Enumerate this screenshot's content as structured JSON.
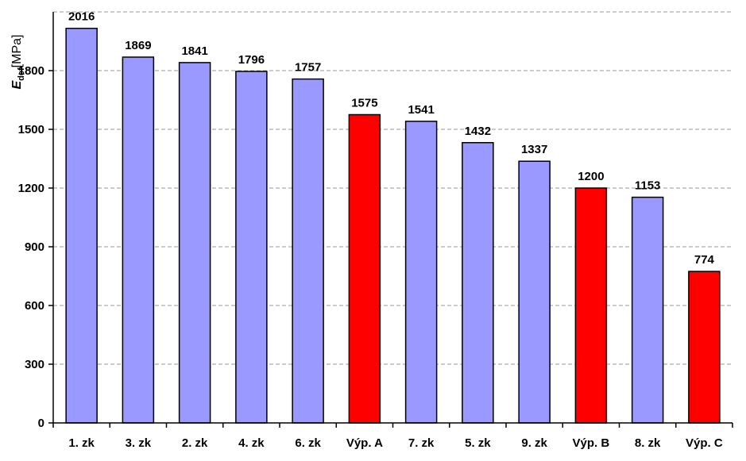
{
  "chart_data": {
    "type": "bar",
    "categories": [
      "1. zk",
      "3. zk",
      "2. zk",
      "4. zk",
      "6. zk",
      "Výp. A",
      "7. zk",
      "5. zk",
      "9. zk",
      "Výp. B",
      "8. zk",
      "Výp. C"
    ],
    "values": [
      2016,
      1869,
      1841,
      1796,
      1757,
      1575,
      1541,
      1432,
      1337,
      1200,
      1153,
      774
    ],
    "value_labels": [
      "2016",
      "1869",
      "1841",
      "1796",
      "1757",
      "1575",
      "1541",
      "1432",
      "1337",
      "1200",
      "1153",
      "774"
    ],
    "bar_colors": [
      "#9999ff",
      "#9999ff",
      "#9999ff",
      "#9999ff",
      "#9999ff",
      "#ff0000",
      "#9999ff",
      "#9999ff",
      "#9999ff",
      "#ff0000",
      "#9999ff",
      "#ff0000"
    ],
    "ylabel": {
      "symbol": "E",
      "subscript": "def",
      "unit": "[MPa]"
    },
    "ylim": [
      0,
      2100
    ],
    "yticks": [
      0,
      300,
      600,
      900,
      1200,
      1500,
      1800
    ],
    "ytick_labels": [
      "0",
      "300",
      "600",
      "900",
      "1200",
      "1500",
      "1800"
    ],
    "grid": true,
    "colors": {
      "default_bar": "#9999ff",
      "highlight_bar": "#ff0000",
      "grid": "#999999"
    }
  }
}
